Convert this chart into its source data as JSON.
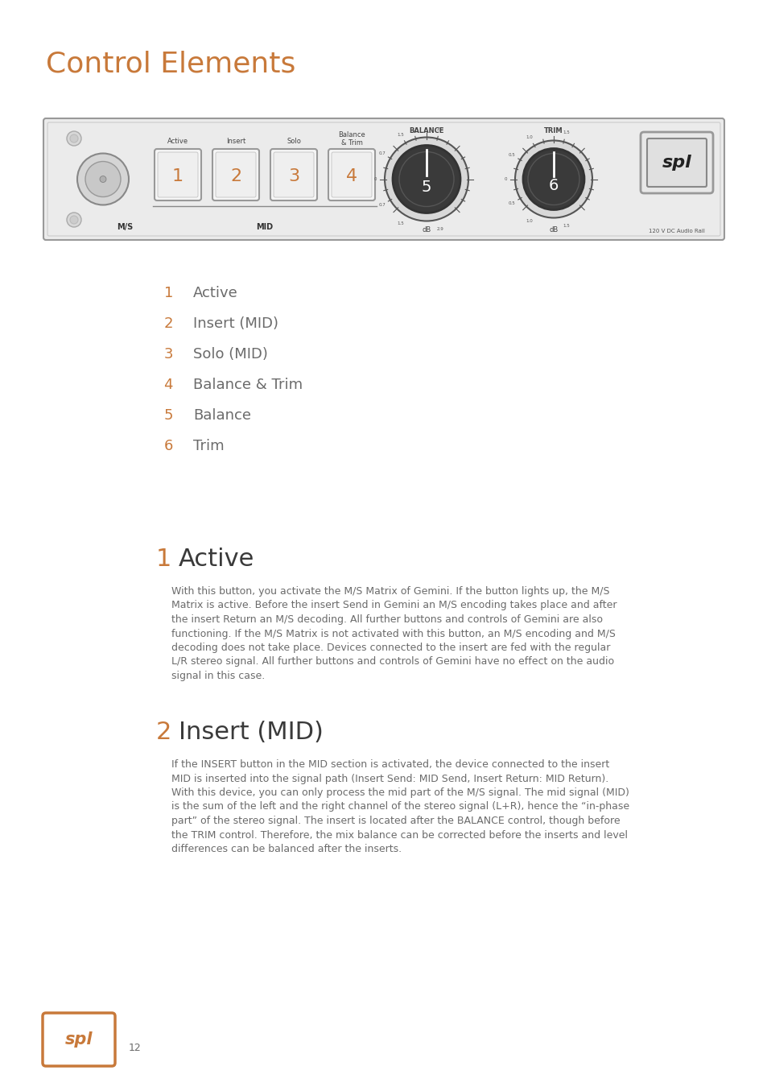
{
  "title": "Control Elements",
  "title_color": "#c8793a",
  "title_fontsize": 26,
  "background_color": "#ffffff",
  "orange_color": "#c8793a",
  "gray_color": "#6b6b6b",
  "dark_gray": "#3a3a3a",
  "list_items": [
    {
      "num": "1",
      "text": "Active"
    },
    {
      "num": "2",
      "text": "Insert (MID)"
    },
    {
      "num": "3",
      "text": "Solo (MID)"
    },
    {
      "num": "4",
      "text": "Balance & Trim"
    },
    {
      "num": "5",
      "text": "Balance"
    },
    {
      "num": "6",
      "text": "Trim"
    }
  ],
  "section1_num": "1",
  "section1_title": "Active",
  "section1_body_lines": [
    "With this button, you activate the M/S Matrix of Gemini. If the button lights up, the M/S",
    "Matrix is active. Before the insert Send in Gemini an M/S encoding takes place and after",
    "the insert Return an M/S decoding. All further buttons and controls of Gemini are also",
    "functioning. If the M/S Matrix is not activated with this button, an M/S encoding and M/S",
    "decoding does not take place. Devices connected to the insert are fed with the regular",
    "L/R stereo signal. All further buttons and controls of Gemini have no effect on the audio",
    "signal in this case."
  ],
  "section2_num": "2",
  "section2_title": "Insert (MID)",
  "section2_body_lines": [
    "If the INSERT button in the MID section is activated, the device connected to the insert",
    "MID is inserted into the signal path (Insert Send: MID Send, Insert Return: MID Return).",
    "With this device, you can only process the mid part of the M/S signal. The mid signal (MID)",
    "is the sum of the left and the right channel of the stereo signal (L+R), hence the “in-phase",
    "part” of the stereo signal. The insert is located after the BALANCE control, though before",
    "the TRIM control. Therefore, the mix balance can be corrected before the inserts and level",
    "differences can be balanced after the inserts."
  ],
  "logo_text": "spl",
  "page_num": "12"
}
